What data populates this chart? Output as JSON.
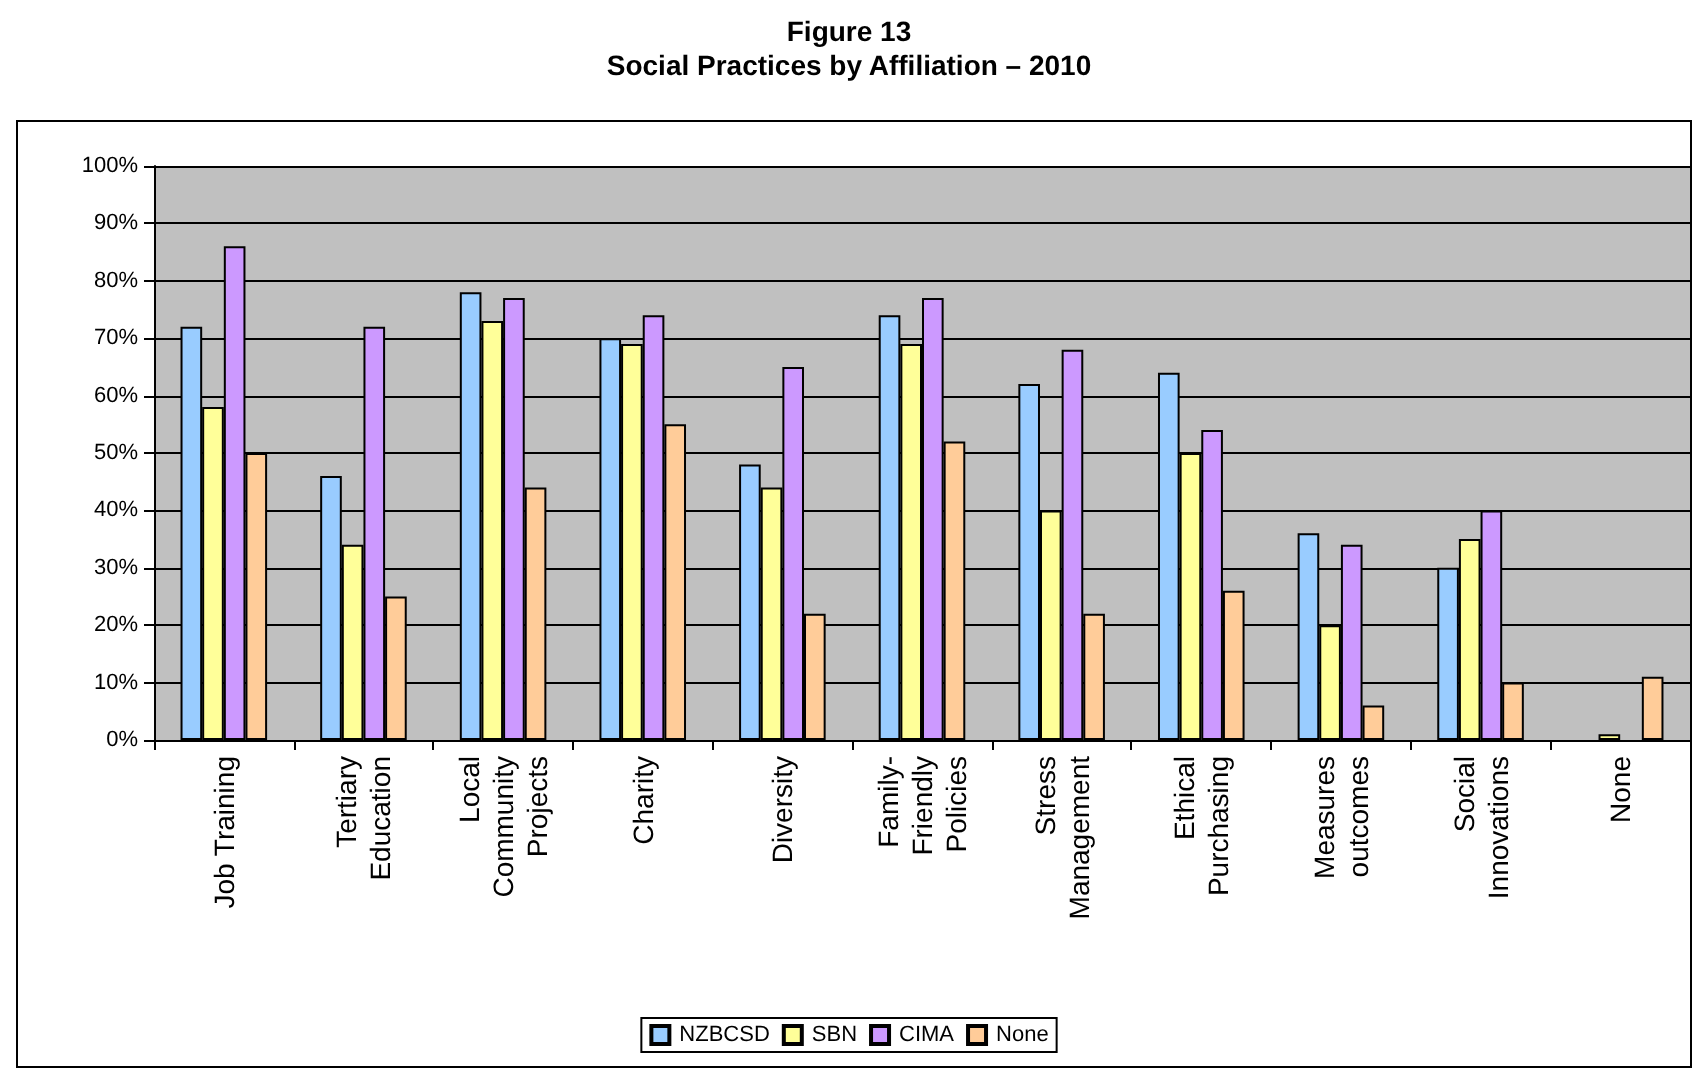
{
  "chart_data": {
    "type": "bar",
    "title": "Figure 13\nSocial Practices by Affiliation – 2010",
    "categories": [
      "Job Training",
      "Tertiary\nEducation",
      "Local\nCommunity\nProjects",
      "Charity",
      "Diversity",
      "Family-\nFriendly\nPolicies",
      "Stress\nManagement",
      "Ethical\nPurchasing",
      "Measures\noutcomes",
      "Social\nInnovations",
      "None"
    ],
    "series": [
      {
        "name": "NZBCSD",
        "color": "#99ccff",
        "values": [
          72,
          46,
          78,
          70,
          48,
          74,
          62,
          64,
          36,
          30,
          0
        ]
      },
      {
        "name": "SBN",
        "color": "#ffff99",
        "values": [
          58,
          34,
          73,
          69,
          44,
          69,
          40,
          50,
          20,
          35,
          1
        ]
      },
      {
        "name": "CIMA",
        "color": "#cc99ff",
        "values": [
          86,
          72,
          77,
          74,
          65,
          77,
          68,
          54,
          34,
          40,
          0
        ]
      },
      {
        "name": "None",
        "color": "#ffcc99",
        "values": [
          50,
          25,
          44,
          55,
          22,
          52,
          22,
          26,
          6,
          10,
          11
        ]
      }
    ],
    "ylim": [
      0,
      100
    ],
    "yticks": [
      {
        "value": 0,
        "label": "0%"
      },
      {
        "value": 10,
        "label": "10%"
      },
      {
        "value": 20,
        "label": "20%"
      },
      {
        "value": 30,
        "label": "30%"
      },
      {
        "value": 40,
        "label": "40%"
      },
      {
        "value": 50,
        "label": "50%"
      },
      {
        "value": 60,
        "label": "60%"
      },
      {
        "value": 70,
        "label": "70%"
      },
      {
        "value": 80,
        "label": "80%"
      },
      {
        "value": 90,
        "label": "90%"
      },
      {
        "value": 100,
        "label": "100%"
      }
    ],
    "grid": "y",
    "legend": "bottom"
  }
}
